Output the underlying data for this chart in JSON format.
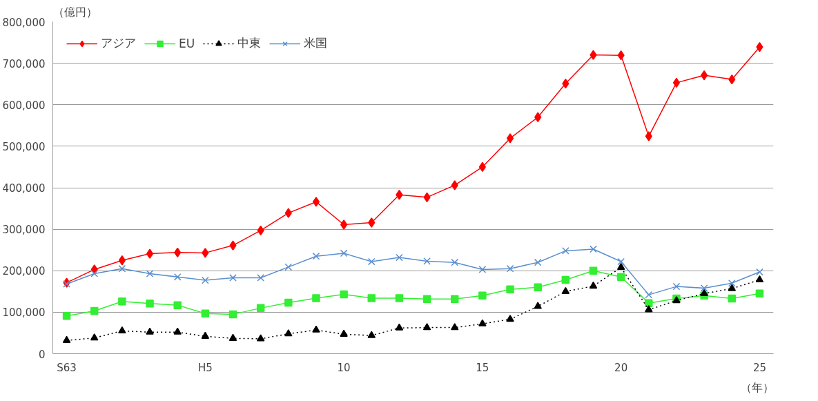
{
  "chart_data": {
    "type": "line",
    "ylabel": "（億円）",
    "xlabel": "（年）",
    "categories": [
      "S63",
      null,
      null,
      null,
      null,
      "H5",
      null,
      null,
      null,
      null,
      "10",
      null,
      null,
      null,
      null,
      "15",
      null,
      null,
      null,
      null,
      "20",
      null,
      null,
      null,
      null,
      "25"
    ],
    "ylim": [
      0,
      800000
    ],
    "yticks": [
      {
        "value": 0,
        "label": "0"
      },
      {
        "value": 100000,
        "label": "100,000"
      },
      {
        "value": 200000,
        "label": "200,000"
      },
      {
        "value": 300000,
        "label": "300,000"
      },
      {
        "value": 400000,
        "label": "400,000"
      },
      {
        "value": 500000,
        "label": "500,000"
      },
      {
        "value": 600000,
        "label": "600,000"
      },
      {
        "value": 700000,
        "label": "700,000"
      },
      {
        "value": 800000,
        "label": "800,000"
      }
    ],
    "grid": "y",
    "legend": "top left",
    "series": [
      {
        "name": "アジア",
        "color": "#ff0000",
        "marker": "diamond",
        "line_style": "solid",
        "values": [
          171000,
          203000,
          225000,
          241000,
          244000,
          243000,
          261000,
          297000,
          339000,
          366000,
          311000,
          316000,
          383000,
          377000,
          406000,
          450000,
          519000,
          570000,
          651000,
          720000,
          719000,
          524000,
          653000,
          671000,
          661000,
          739000
        ]
      },
      {
        "name": "EU",
        "color": "#33ee33",
        "marker": "square",
        "line_style": "solid",
        "values": [
          91000,
          103000,
          126000,
          121000,
          117000,
          97000,
          95000,
          110000,
          123000,
          134000,
          143000,
          134000,
          134000,
          132000,
          132000,
          140000,
          155000,
          160000,
          178000,
          200000,
          185000,
          122000,
          133000,
          140000,
          133000,
          145000
        ]
      },
      {
        "name": "中東",
        "color": "#000000",
        "marker": "triangle",
        "line_style": "dotted",
        "values": [
          32000,
          38000,
          55000,
          52000,
          52000,
          42000,
          37000,
          36000,
          48000,
          57000,
          47000,
          44000,
          62000,
          63000,
          63000,
          72000,
          83000,
          114000,
          150000,
          163000,
          208000,
          106000,
          128000,
          145000,
          157000,
          178000
        ]
      },
      {
        "name": "米国",
        "color": "#5b8fcf",
        "marker": "cross",
        "line_style": "solid",
        "values": [
          168000,
          193000,
          205000,
          193000,
          185000,
          177000,
          183000,
          183000,
          209000,
          235000,
          242000,
          222000,
          232000,
          223000,
          220000,
          203000,
          205000,
          220000,
          248000,
          252000,
          222000,
          142000,
          162000,
          158000,
          170000,
          197000
        ]
      }
    ]
  }
}
